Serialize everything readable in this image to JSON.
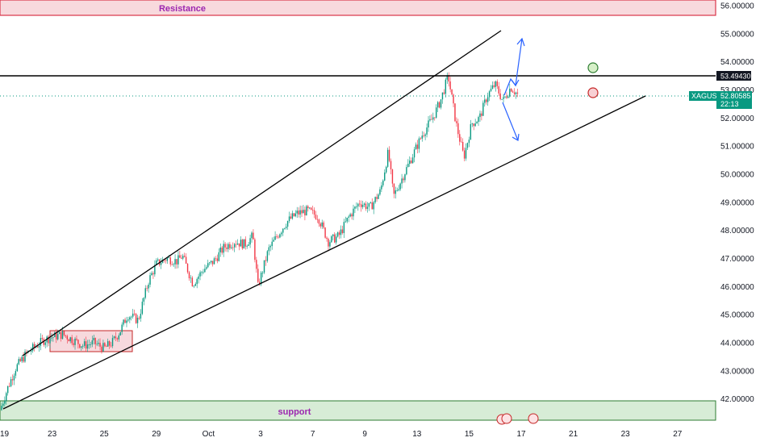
{
  "chart_data": {
    "type": "candlestick",
    "symbol": "XAGUSD",
    "price_tag": {
      "value": "52.80585",
      "countdown": "22:13"
    },
    "resistance_label": "Resistance",
    "support_label": "support",
    "level_price": "53.49430",
    "y_axis": {
      "range": [
        41.1,
        56.0
      ],
      "ticks": [
        "42.00000",
        "43.00000",
        "44.00000",
        "45.00000",
        "46.00000",
        "47.00000",
        "48.00000",
        "49.00000",
        "50.00000",
        "51.00000",
        "52.00000",
        "53.00000",
        "54.00000",
        "55.00000",
        "56.00000"
      ]
    },
    "x_axis": {
      "ticks": [
        {
          "label": "19",
          "pos": 0.0
        },
        {
          "label": "23",
          "pos": 2.0
        },
        {
          "label": "25",
          "pos": 4.0
        },
        {
          "label": "29",
          "pos": 6.0
        },
        {
          "label": "Oct",
          "pos": 8.0
        },
        {
          "label": "3",
          "pos": 10.0
        },
        {
          "label": "7",
          "pos": 12.0
        },
        {
          "label": "9",
          "pos": 14.0
        },
        {
          "label": "13",
          "pos": 16.0
        },
        {
          "label": "15",
          "pos": 18.0
        },
        {
          "label": "17",
          "pos": 20.0
        },
        {
          "label": "21",
          "pos": 22.0
        },
        {
          "label": "23",
          "pos": 24.0
        },
        {
          "label": "27",
          "pos": 26.0
        }
      ]
    },
    "price_path": [
      [
        0.0,
        41.6
      ],
      [
        0.3,
        42.4
      ],
      [
        0.6,
        43.1
      ],
      [
        1.0,
        43.6
      ],
      [
        1.4,
        43.9
      ],
      [
        1.7,
        44.1
      ],
      [
        2.0,
        44.2
      ],
      [
        2.4,
        44.3
      ],
      [
        2.8,
        44.1
      ],
      [
        3.2,
        43.9
      ],
      [
        3.6,
        44.0
      ],
      [
        4.0,
        43.8
      ],
      [
        4.3,
        44.0
      ],
      [
        4.6,
        44.4
      ],
      [
        4.9,
        45.0
      ],
      [
        5.3,
        44.8
      ],
      [
        5.7,
        46.2
      ],
      [
        6.0,
        46.8
      ],
      [
        6.4,
        47.0
      ],
      [
        6.8,
        46.9
      ],
      [
        7.0,
        47.1
      ],
      [
        7.4,
        46.1
      ],
      [
        7.8,
        46.6
      ],
      [
        8.2,
        46.9
      ],
      [
        8.6,
        47.4
      ],
      [
        9.0,
        47.6
      ],
      [
        9.4,
        47.5
      ],
      [
        9.7,
        47.8
      ],
      [
        9.9,
        46.0
      ],
      [
        10.3,
        47.3
      ],
      [
        10.7,
        47.9
      ],
      [
        11.0,
        48.3
      ],
      [
        11.4,
        48.6
      ],
      [
        11.8,
        48.7
      ],
      [
        12.2,
        48.5
      ],
      [
        12.6,
        47.6
      ],
      [
        13.0,
        47.8
      ],
      [
        13.4,
        48.5
      ],
      [
        13.8,
        49.0
      ],
      [
        14.2,
        48.8
      ],
      [
        14.6,
        49.4
      ],
      [
        14.9,
        50.8
      ],
      [
        15.1,
        49.2
      ],
      [
        15.5,
        50.0
      ],
      [
        15.9,
        50.8
      ],
      [
        16.2,
        51.4
      ],
      [
        16.6,
        52.0
      ],
      [
        16.9,
        52.6
      ],
      [
        17.2,
        53.5
      ],
      [
        17.5,
        51.8
      ],
      [
        17.8,
        50.6
      ],
      [
        18.1,
        51.8
      ],
      [
        18.4,
        52.0
      ],
      [
        18.7,
        52.8
      ],
      [
        19.0,
        53.2
      ],
      [
        19.3,
        52.6
      ],
      [
        19.6,
        53.1
      ],
      [
        19.9,
        52.8
      ]
    ]
  }
}
